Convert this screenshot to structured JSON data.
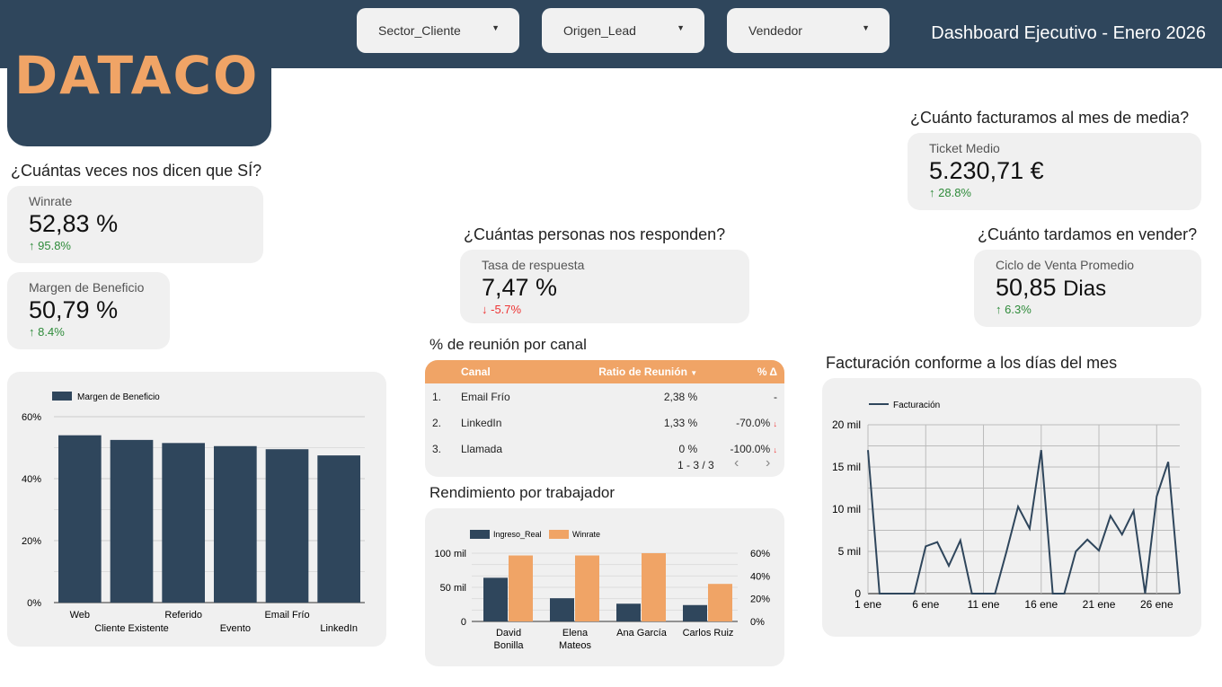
{
  "header": {
    "title": "Dashboard Ejecutivo - Enero 2026",
    "logo": "DATACO",
    "filters": [
      "Sector_Cliente",
      "Origen_Lead",
      "Vendedor"
    ]
  },
  "questions": {
    "si": "¿Cuántas veces nos dicen que SÍ?",
    "responden": "¿Cuántas personas nos responden?",
    "facturamos": "¿Cuánto facturamos al mes de media?",
    "tardamos": "¿Cuánto tardamos en vender?",
    "reunion": "% de reunión por canal",
    "rendimiento": "Rendimiento por trabajador",
    "facturacion": "Facturación conforme a los días del mes"
  },
  "kpis": {
    "winrate": {
      "label": "Winrate",
      "value": "52,83 %",
      "delta": "95.8%",
      "dir": "up"
    },
    "margen": {
      "label": "Margen de Beneficio",
      "value": "50,79 %",
      "delta": "8.4%",
      "dir": "up"
    },
    "respuesta": {
      "label": "Tasa de respuesta",
      "value": "7,47 %",
      "delta": "-5.7%",
      "dir": "down"
    },
    "ticket": {
      "label": "Ticket Medio",
      "value": "5.230,71 €",
      "delta": "28.8%",
      "dir": "up"
    },
    "ciclo": {
      "label": "Ciclo de Venta Promedio",
      "value": "50,85",
      "unit": "Dias",
      "delta": "6.3%",
      "dir": "up"
    }
  },
  "table": {
    "headers": [
      "Canal",
      "Ratio de Reunión",
      "% Δ"
    ],
    "rows": [
      {
        "n": "1.",
        "canal": "Email Frío",
        "ratio": "2,38 %",
        "delta": "-"
      },
      {
        "n": "2.",
        "canal": "LinkedIn",
        "ratio": "1,33 %",
        "delta": "-70.0%"
      },
      {
        "n": "3.",
        "canal": "Llamada",
        "ratio": "0 %",
        "delta": "-100.0%"
      }
    ],
    "pagination": "1 - 3 / 3"
  },
  "chart_data": [
    {
      "type": "bar",
      "title": "",
      "legend": [
        "Margen de Beneficio"
      ],
      "categories": [
        "Web",
        "Cliente Existente",
        "Referido",
        "Evento",
        "Email Frío",
        "LinkedIn"
      ],
      "values": [
        54,
        52.5,
        51.5,
        50.5,
        49.5,
        47.5
      ],
      "ylim": [
        0,
        60
      ],
      "yticks": [
        "0%",
        "20%",
        "40%",
        "60%"
      ],
      "color": "#2f465c"
    },
    {
      "type": "bar",
      "legend": [
        "Ingreso_Real",
        "Winrate"
      ],
      "categories": [
        "David Bonilla",
        "Elena Mateos",
        "Ana García",
        "Carlos Ruiz"
      ],
      "series": [
        {
          "name": "Ingreso_Real",
          "values": [
            64000,
            34000,
            26000,
            24000
          ],
          "color": "#2f465c"
        },
        {
          "name": "Winrate",
          "values": [
            58,
            58,
            60,
            33
          ],
          "color": "#f0a466"
        }
      ],
      "ylim_left": [
        0,
        100000
      ],
      "ylim_right": [
        0,
        60
      ],
      "yticks_left": [
        "0",
        "50 mil",
        "100 mil"
      ],
      "yticks_right": [
        "0%",
        "20%",
        "40%",
        "60%"
      ]
    },
    {
      "type": "line",
      "legend": [
        "Facturación"
      ],
      "x": [
        1,
        2,
        3,
        4,
        5,
        6,
        7,
        8,
        9,
        10,
        11,
        12,
        13,
        14,
        15,
        16,
        17,
        18,
        19,
        20,
        21,
        22,
        23,
        24,
        25,
        26,
        27,
        28
      ],
      "values": [
        17000,
        0,
        0,
        0,
        0,
        5600,
        6100,
        3300,
        6300,
        0,
        0,
        0,
        5000,
        10300,
        7700,
        17000,
        0,
        0,
        5000,
        6400,
        5100,
        9200,
        7000,
        9800,
        0,
        11500,
        15600,
        0
      ],
      "ylim": [
        0,
        20000
      ],
      "yticks": [
        "0",
        "5 mil",
        "10 mil",
        "15 mil",
        "20 mil"
      ],
      "xticks": [
        "1 ene",
        "6 ene",
        "11 ene",
        "16 ene",
        "21 ene",
        "26 ene"
      ],
      "color": "#2f465c"
    }
  ]
}
